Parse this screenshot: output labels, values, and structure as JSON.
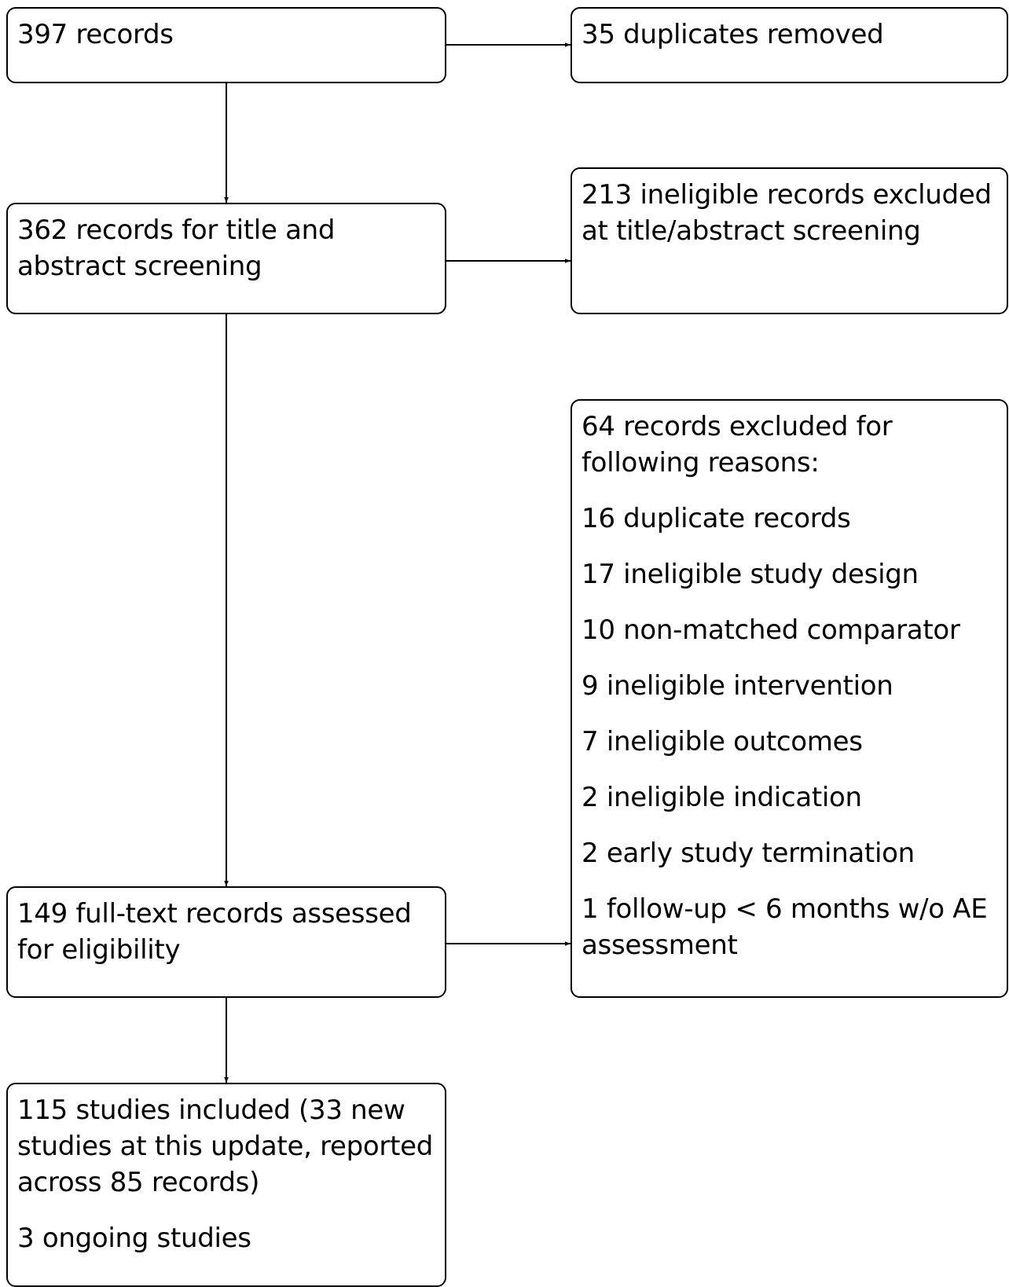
{
  "flow": {
    "identified": {
      "text": "397 records"
    },
    "duplicates_removed": {
      "text": "35 duplicates removed"
    },
    "screening": {
      "text": "362 records for title and abstract screening"
    },
    "screening_excluded": {
      "text": "213 ineligible records excluded at title/abstract screening"
    },
    "full_text": {
      "text": "149 full-text records assessed for eligibility"
    },
    "full_text_excluded": {
      "heading": "64 records excluded for following reasons:",
      "reasons": [
        "16 duplicate records",
        "17 ineligible study design",
        "10 non-matched comparator",
        "9 ineligible intervention",
        "7 ineligible outcomes",
        "2 ineligible indication",
        "2 early study termination",
        "1 follow-up < 6 months w/o AE assessment"
      ]
    },
    "included": {
      "text": "115 studies included (33 new studies at this update, reported across 85 records)",
      "ongoing": "3 ongoing studies"
    }
  }
}
